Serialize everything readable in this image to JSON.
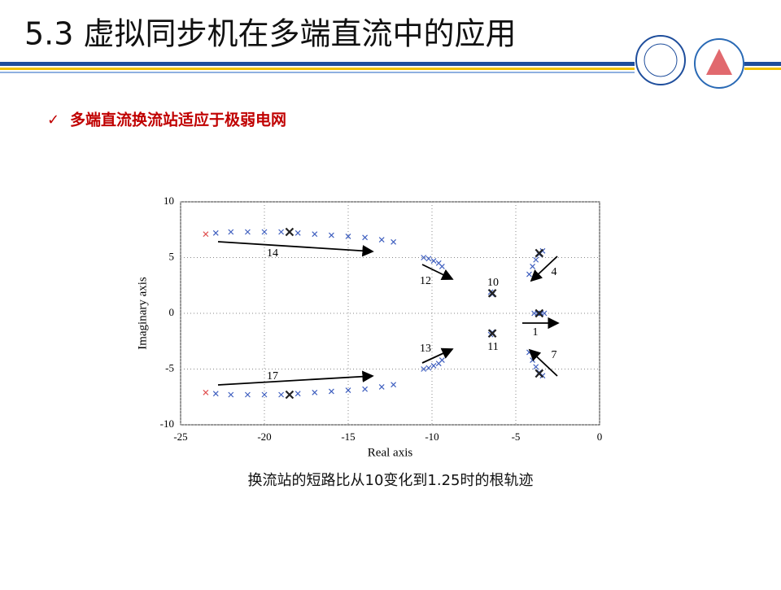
{
  "header": {
    "title": "5.3 虚拟同步机在多端直流中的应用"
  },
  "bullet": "多端直流换流站适应于极弱电网",
  "chart_data": {
    "type": "scatter",
    "xlabel": "Real axis",
    "ylabel": "Imaginary axis",
    "xlim": [
      -25,
      0
    ],
    "ylim": [
      -10,
      10
    ],
    "xticks": [
      -25,
      -20,
      -15,
      -10,
      -5,
      0
    ],
    "yticks": [
      -10,
      -5,
      0,
      5,
      10
    ],
    "grid": true,
    "series": [
      {
        "color": "#3f5fbf",
        "marker": "x",
        "x": [
          -22.9,
          -22.0,
          -21.0,
          -20.0,
          -19.0,
          -18.0,
          -17.0,
          -16.0,
          -15.0,
          -14.0,
          -13.0,
          -12.3,
          -22.9,
          -22.0,
          -21.0,
          -20.0,
          -19.0,
          -18.0,
          -17.0,
          -16.0,
          -15.0,
          -14.0,
          -13.0,
          -12.3,
          -10.5,
          -10.2,
          -9.9,
          -9.6,
          -9.4,
          -10.5,
          -10.2,
          -9.9,
          -9.6,
          -9.4,
          -6.5,
          -6.4,
          -6.5,
          -6.4,
          -4.2,
          -4.0,
          -3.8,
          -3.6,
          -3.4,
          -4.2,
          -4.0,
          -3.8,
          -3.6,
          -3.4,
          -3.9,
          -3.7,
          -3.5,
          -3.3
        ],
        "values": [
          7.2,
          7.3,
          7.3,
          7.3,
          7.3,
          7.2,
          7.1,
          7.0,
          6.9,
          6.8,
          6.6,
          6.4,
          -7.2,
          -7.3,
          -7.3,
          -7.3,
          -7.3,
          -7.2,
          -7.1,
          -7.0,
          -6.9,
          -6.8,
          -6.6,
          -6.4,
          5.0,
          4.9,
          4.7,
          4.5,
          4.2,
          -5.0,
          -4.9,
          -4.7,
          -4.5,
          -4.2,
          1.9,
          1.7,
          -1.9,
          -1.7,
          3.5,
          4.2,
          4.8,
          5.3,
          5.6,
          -3.5,
          -4.2,
          -4.8,
          -5.3,
          -5.6,
          0,
          0,
          0,
          0
        ]
      },
      {
        "color": "#e05050",
        "marker": "x",
        "x": [
          -23.5,
          -23.5
        ],
        "values": [
          7.1,
          -7.1
        ]
      },
      {
        "color": "#222222",
        "marker": "X",
        "x": [
          -18.5,
          -18.5,
          -6.4,
          -6.4,
          -3.6,
          -3.6,
          -3.6
        ],
        "values": [
          7.3,
          -7.3,
          1.8,
          -1.8,
          5.4,
          -5.4,
          0
        ]
      }
    ],
    "annotations": [
      "14",
      "12",
      "10",
      "4",
      "1",
      "11",
      "13",
      "17",
      "7"
    ],
    "caption": "换流站的短路比从10变化到1.25时的根轨迹"
  }
}
